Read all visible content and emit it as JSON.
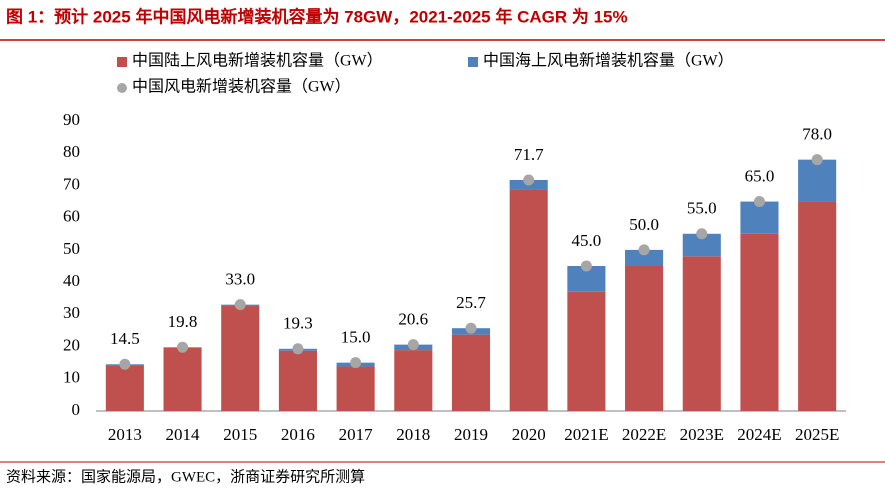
{
  "chart_data": {
    "type": "bar",
    "stacked": true,
    "title": "图 1：预计 2025 年中国风电新增装机容量为 78GW，2021-2025 年 CAGR 为 15%",
    "source": "资料来源：国家能源局，GWEC，浙商证券研究所测算",
    "categories": [
      "2013",
      "2014",
      "2015",
      "2016",
      "2017",
      "2018",
      "2019",
      "2020",
      "2021E",
      "2022E",
      "2023E",
      "2024E",
      "2025E"
    ],
    "series": [
      {
        "name": "中国陆上风电新增装机容量（GW）",
        "color": "#c0504d",
        "values": [
          14.1,
          19.6,
          32.6,
          18.7,
          13.8,
          18.9,
          23.7,
          68.6,
          37,
          45,
          48,
          55,
          65
        ]
      },
      {
        "name": "中国海上风电新增装机容量（GW）",
        "color": "#4f81bd",
        "values": [
          0.4,
          0.2,
          0.4,
          0.6,
          1.2,
          1.7,
          2.0,
          3.1,
          8,
          5,
          7,
          10,
          13
        ]
      },
      {
        "name": "中国风电新增装机容量（GW）",
        "color": "#a6a6a6",
        "type": "scatter",
        "values": [
          14.5,
          19.8,
          33.0,
          19.3,
          15.0,
          20.6,
          25.7,
          71.7,
          45.0,
          50.0,
          55.0,
          65.0,
          78.0
        ],
        "value_labels": [
          "14.5",
          "19.8",
          "33.0",
          "19.3",
          "15.0",
          "20.6",
          "25.7",
          "71.7",
          "45.0",
          "50.0",
          "55.0",
          "65.0",
          "78.0"
        ]
      }
    ],
    "ylim": [
      0,
      90
    ],
    "yticks": [
      0,
      10,
      20,
      30,
      40,
      50,
      60,
      70,
      80,
      90
    ],
    "grid": false
  }
}
